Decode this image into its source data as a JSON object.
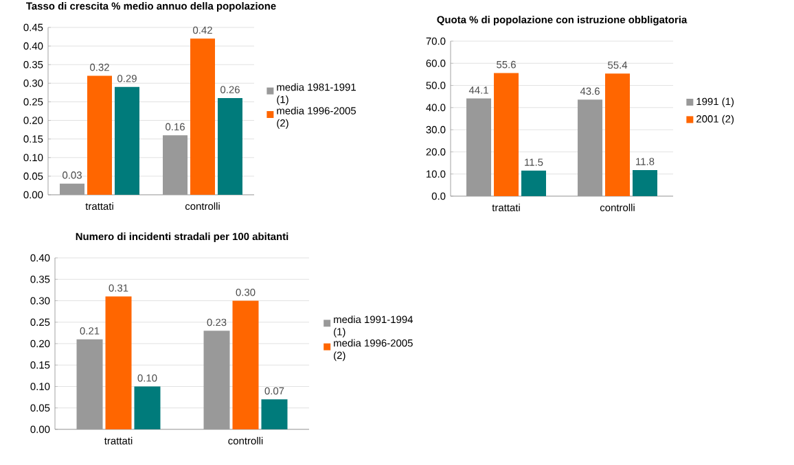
{
  "chart_data": [
    {
      "type": "bar",
      "title": "Tasso di crescita % medio annuo della popolazione",
      "categories": [
        "trattati",
        "controlli"
      ],
      "series": [
        {
          "name": "media 1981-1991 (1)",
          "color": "#999999",
          "values": [
            0.03,
            0.16
          ],
          "value_labels": [
            "0.03",
            "0.16"
          ]
        },
        {
          "name": "media 1996-2005 (2)",
          "color": "#ff6600",
          "values": [
            0.32,
            0.42
          ],
          "value_labels": [
            "0.32",
            "0.42"
          ]
        },
        {
          "color": "#007b7b",
          "values": [
            0.29,
            0.26
          ],
          "value_labels": [
            "0.29",
            "0.26"
          ]
        }
      ],
      "ylim": [
        0,
        0.45
      ],
      "yticks": [
        {
          "value": 0,
          "label": "0.00"
        },
        {
          "value": 0.05,
          "label": "0.05"
        },
        {
          "value": 0.1,
          "label": "0.10"
        },
        {
          "value": 0.15,
          "label": "0.15"
        },
        {
          "value": 0.2,
          "label": "0.20"
        },
        {
          "value": 0.25,
          "label": "0.25"
        },
        {
          "value": 0.3,
          "label": "0.30"
        },
        {
          "value": 0.35,
          "label": "0.35"
        },
        {
          "value": 0.4,
          "label": "0.40"
        },
        {
          "value": 0.45,
          "label": "0.45"
        }
      ],
      "grid": "y",
      "legend": "right"
    },
    {
      "type": "bar",
      "title": "Quota % di popolazione con istruzione obbligatoria",
      "categories": [
        "trattati",
        "controlli"
      ],
      "series": [
        {
          "name": "1991 (1)",
          "color": "#999999",
          "values": [
            44.1,
            43.6
          ],
          "value_labels": [
            "44.1",
            "43.6"
          ]
        },
        {
          "name": "2001 (2)",
          "color": "#ff6600",
          "values": [
            55.6,
            55.4
          ],
          "value_labels": [
            "55.6",
            "55.4"
          ]
        },
        {
          "color": "#007b7b",
          "values": [
            11.5,
            11.8
          ],
          "value_labels": [
            "11.5",
            "11.8"
          ]
        }
      ],
      "ylim": [
        0,
        70
      ],
      "yticks": [
        {
          "value": 0,
          "label": "0.0"
        },
        {
          "value": 10,
          "label": "10.0"
        },
        {
          "value": 20,
          "label": "20.0"
        },
        {
          "value": 30,
          "label": "30.0"
        },
        {
          "value": 40,
          "label": "40.0"
        },
        {
          "value": 50,
          "label": "50.0"
        },
        {
          "value": 60,
          "label": "60.0"
        },
        {
          "value": 70,
          "label": "70.0"
        }
      ],
      "grid": "y",
      "legend": "right"
    },
    {
      "type": "bar",
      "title": "Numero di incidenti stradali per 100 abitanti",
      "categories": [
        "trattati",
        "controlli"
      ],
      "series": [
        {
          "name": "media 1991-1994 (1)",
          "color": "#999999",
          "values": [
            0.21,
            0.23
          ],
          "value_labels": [
            "0.21",
            "0.23"
          ]
        },
        {
          "name": "media 1996-2005 (2)",
          "color": "#ff6600",
          "values": [
            0.31,
            0.3
          ],
          "value_labels": [
            "0.31",
            "0.30"
          ]
        },
        {
          "color": "#007b7b",
          "values": [
            0.1,
            0.07
          ],
          "value_labels": [
            "0.10",
            "0.07"
          ]
        }
      ],
      "ylim": [
        0,
        0.4
      ],
      "yticks": [
        {
          "value": 0,
          "label": "0.00"
        },
        {
          "value": 0.05,
          "label": "0.05"
        },
        {
          "value": 0.1,
          "label": "0.10"
        },
        {
          "value": 0.15,
          "label": "0.15"
        },
        {
          "value": 0.2,
          "label": "0.20"
        },
        {
          "value": 0.25,
          "label": "0.25"
        },
        {
          "value": 0.3,
          "label": "0.30"
        },
        {
          "value": 0.35,
          "label": "0.35"
        },
        {
          "value": 0.4,
          "label": "0.40"
        }
      ],
      "grid": "y",
      "legend": "right"
    }
  ]
}
